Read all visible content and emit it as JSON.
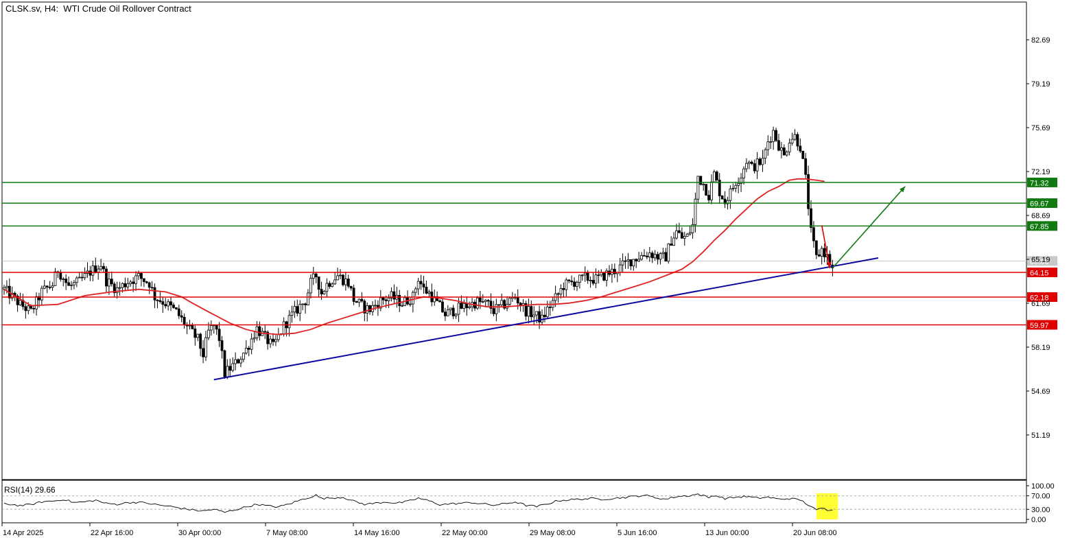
{
  "header": {
    "symbol_timeframe": "CLSK.sv, H4:",
    "instrument": "WTI Crude Oil Rollover Contract"
  },
  "rsi": {
    "label": "RSI(14)",
    "value": "29.66"
  },
  "colors": {
    "support_green": "#107a10",
    "resistance_red": "#e00000",
    "trendline_blue": "#0a0aa0",
    "ma_red": "#e02020",
    "rsi_highlight": "#ffff33"
  },
  "chart_data": {
    "type": "candlestick",
    "title": "WTI Crude Oil Rollover Contract",
    "timeframe": "H4",
    "ylim": [
      48.3,
      85.0
    ],
    "y_ticks": [
      "82.69",
      "79.19",
      "75.69",
      "72.19",
      "68.69",
      "65.19",
      "61.69",
      "58.19",
      "54.69",
      "51.19"
    ],
    "x_ticks": [
      "14 Apr 2025",
      "22 Apr 16:00",
      "30 Apr 00:00",
      "7 May 08:00",
      "14 May 16:00",
      "22 May 00:00",
      "29 May 08:00",
      "5 Jun 16:00",
      "13 Jun 00:00",
      "20 Jun 08:00"
    ],
    "current_price": "65.06",
    "green_levels": [
      {
        "value": 71.32,
        "label": "71.32"
      },
      {
        "value": 69.67,
        "label": "69.67"
      },
      {
        "value": 67.85,
        "label": "67.85"
      }
    ],
    "red_levels": [
      {
        "value": 64.15,
        "label": "64.15"
      },
      {
        "value": 62.18,
        "label": "62.18"
      },
      {
        "value": 59.97,
        "label": "59.97"
      }
    ],
    "trendline": {
      "from": {
        "bar": 78,
        "price": 55.6
      },
      "to": {
        "bar": 325,
        "price": 65.3
      }
    },
    "arrows": [
      {
        "color": "red",
        "from": {
          "bar": 304,
          "price": 67.9
        },
        "to": {
          "bar": 307,
          "price": 64.5
        }
      },
      {
        "color": "green",
        "from": {
          "bar": 308,
          "price": 64.5
        },
        "to": {
          "bar": 335,
          "price": 71.0
        }
      }
    ],
    "close_path": [
      [
        0,
        62.8
      ],
      [
        6,
        61.6
      ],
      [
        10,
        61.0
      ],
      [
        14,
        62.6
      ],
      [
        18,
        63.2
      ],
      [
        20,
        64.4
      ],
      [
        24,
        63.0
      ],
      [
        28,
        63.4
      ],
      [
        32,
        64.2
      ],
      [
        36,
        64.8
      ],
      [
        38,
        63.5
      ],
      [
        42,
        62.8
      ],
      [
        46,
        63.4
      ],
      [
        50,
        63.8
      ],
      [
        54,
        63.3
      ],
      [
        56,
        62.2
      ],
      [
        60,
        61.7
      ],
      [
        64,
        61.0
      ],
      [
        68,
        59.8
      ],
      [
        72,
        58.8
      ],
      [
        74,
        57.6
      ],
      [
        76,
        59.4
      ],
      [
        78,
        59.9
      ],
      [
        80,
        58.9
      ],
      [
        82,
        56.1
      ],
      [
        86,
        56.9
      ],
      [
        90,
        58.0
      ],
      [
        94,
        59.7
      ],
      [
        98,
        58.7
      ],
      [
        100,
        58.2
      ],
      [
        104,
        59.9
      ],
      [
        108,
        61.0
      ],
      [
        112,
        61.9
      ],
      [
        114,
        63.3
      ],
      [
        116,
        63.9
      ],
      [
        118,
        62.5
      ],
      [
        120,
        63.2
      ],
      [
        122,
        63.6
      ],
      [
        124,
        63.9
      ],
      [
        128,
        63.3
      ],
      [
        130,
        62.0
      ],
      [
        134,
        61.3
      ],
      [
        136,
        61.2
      ],
      [
        140,
        61.9
      ],
      [
        144,
        62.2
      ],
      [
        148,
        61.7
      ],
      [
        152,
        62.2
      ],
      [
        154,
        63.7
      ],
      [
        156,
        62.8
      ],
      [
        158,
        62.5
      ],
      [
        162,
        61.4
      ],
      [
        164,
        60.8
      ],
      [
        168,
        61.2
      ],
      [
        172,
        61.5
      ],
      [
        176,
        61.8
      ],
      [
        180,
        61.6
      ],
      [
        182,
        61.1
      ],
      [
        186,
        61.6
      ],
      [
        190,
        62.2
      ],
      [
        194,
        61.1
      ],
      [
        196,
        60.9
      ],
      [
        200,
        60.4
      ],
      [
        202,
        61.2
      ],
      [
        206,
        62.4
      ],
      [
        208,
        63.1
      ],
      [
        212,
        63.4
      ],
      [
        216,
        63.7
      ],
      [
        220,
        63.6
      ],
      [
        224,
        64.0
      ],
      [
        228,
        64.4
      ],
      [
        232,
        65.0
      ],
      [
        236,
        65.4
      ],
      [
        240,
        65.7
      ],
      [
        244,
        65.3
      ],
      [
        246,
        65.4
      ],
      [
        248,
        66.7
      ],
      [
        250,
        67.4
      ],
      [
        252,
        66.9
      ],
      [
        254,
        67.0
      ],
      [
        256,
        67.9
      ],
      [
        258,
        71.8
      ],
      [
        260,
        71.2
      ],
      [
        262,
        70.3
      ],
      [
        264,
        72.0
      ],
      [
        266,
        70.6
      ],
      [
        268,
        69.8
      ],
      [
        270,
        70.5
      ],
      [
        272,
        71.4
      ],
      [
        274,
        71.9
      ],
      [
        276,
        73.1
      ],
      [
        278,
        72.5
      ],
      [
        280,
        72.8
      ],
      [
        282,
        73.0
      ],
      [
        284,
        74.6
      ],
      [
        286,
        75.4
      ],
      [
        288,
        74.3
      ],
      [
        290,
        73.4
      ],
      [
        292,
        74.8
      ],
      [
        294,
        75.0
      ],
      [
        296,
        74.2
      ],
      [
        298,
        71.6
      ],
      [
        300,
        67.3
      ],
      [
        302,
        65.3
      ],
      [
        304,
        66.0
      ],
      [
        306,
        65.4
      ],
      [
        308,
        64.4
      ]
    ],
    "moving_average": [
      [
        0,
        62.8
      ],
      [
        10,
        61.5
      ],
      [
        20,
        61.6
      ],
      [
        30,
        62.3
      ],
      [
        40,
        62.6
      ],
      [
        50,
        62.8
      ],
      [
        60,
        62.6
      ],
      [
        66,
        62.2
      ],
      [
        70,
        61.7
      ],
      [
        76,
        61.0
      ],
      [
        84,
        60.1
      ],
      [
        90,
        59.6
      ],
      [
        96,
        59.3
      ],
      [
        102,
        59.2
      ],
      [
        108,
        59.3
      ],
      [
        114,
        59.6
      ],
      [
        120,
        60.1
      ],
      [
        126,
        60.5
      ],
      [
        132,
        60.9
      ],
      [
        138,
        61.3
      ],
      [
        144,
        61.6
      ],
      [
        150,
        61.9
      ],
      [
        156,
        62.2
      ],
      [
        162,
        62.1
      ],
      [
        168,
        61.9
      ],
      [
        174,
        61.6
      ],
      [
        180,
        61.4
      ],
      [
        186,
        61.4
      ],
      [
        192,
        61.5
      ],
      [
        198,
        61.6
      ],
      [
        204,
        61.6
      ],
      [
        210,
        61.7
      ],
      [
        216,
        61.9
      ],
      [
        222,
        62.2
      ],
      [
        228,
        62.6
      ],
      [
        234,
        63.0
      ],
      [
        240,
        63.4
      ],
      [
        246,
        63.9
      ],
      [
        252,
        64.4
      ],
      [
        256,
        65.0
      ],
      [
        260,
        65.8
      ],
      [
        264,
        66.7
      ],
      [
        268,
        67.5
      ],
      [
        272,
        68.4
      ],
      [
        276,
        69.2
      ],
      [
        280,
        70.0
      ],
      [
        284,
        70.6
      ],
      [
        288,
        71.0
      ],
      [
        292,
        71.5
      ],
      [
        295,
        71.6
      ],
      [
        298,
        71.6
      ],
      [
        302,
        71.5
      ],
      [
        305,
        71.4
      ]
    ],
    "rsi_panel": {
      "ylim": [
        0,
        100
      ],
      "levels": [
        70,
        30
      ],
      "y_ticks": [
        "100.00",
        "70.00",
        "30.00",
        "0.00"
      ],
      "values": [
        [
          0,
          47
        ],
        [
          6,
          41
        ],
        [
          10,
          44
        ],
        [
          14,
          52
        ],
        [
          20,
          56
        ],
        [
          22,
          60
        ],
        [
          26,
          50
        ],
        [
          30,
          52
        ],
        [
          34,
          57
        ],
        [
          38,
          47
        ],
        [
          42,
          45
        ],
        [
          46,
          50
        ],
        [
          50,
          51
        ],
        [
          54,
          47
        ],
        [
          58,
          42
        ],
        [
          62,
          38
        ],
        [
          66,
          33
        ],
        [
          70,
          28
        ],
        [
          74,
          25
        ],
        [
          78,
          30
        ],
        [
          82,
          21
        ],
        [
          86,
          29
        ],
        [
          90,
          37
        ],
        [
          94,
          45
        ],
        [
          98,
          40
        ],
        [
          102,
          37
        ],
        [
          106,
          46
        ],
        [
          110,
          57
        ],
        [
          114,
          67
        ],
        [
          116,
          72
        ],
        [
          118,
          62
        ],
        [
          122,
          64
        ],
        [
          126,
          66
        ],
        [
          130,
          54
        ],
        [
          134,
          45
        ],
        [
          138,
          48
        ],
        [
          142,
          52
        ],
        [
          146,
          48
        ],
        [
          150,
          53
        ],
        [
          154,
          63
        ],
        [
          158,
          55
        ],
        [
          162,
          44
        ],
        [
          166,
          46
        ],
        [
          170,
          48
        ],
        [
          174,
          50
        ],
        [
          178,
          46
        ],
        [
          182,
          42
        ],
        [
          186,
          46
        ],
        [
          190,
          52
        ],
        [
          194,
          42
        ],
        [
          198,
          38
        ],
        [
          202,
          46
        ],
        [
          206,
          56
        ],
        [
          210,
          58
        ],
        [
          214,
          60
        ],
        [
          218,
          62
        ],
        [
          222,
          60
        ],
        [
          226,
          62
        ],
        [
          230,
          65
        ],
        [
          234,
          68
        ],
        [
          238,
          72
        ],
        [
          242,
          65
        ],
        [
          246,
          60
        ],
        [
          250,
          68
        ],
        [
          254,
          70
        ],
        [
          258,
          75
        ],
        [
          262,
          65
        ],
        [
          264,
          72
        ],
        [
          268,
          62
        ],
        [
          272,
          66
        ],
        [
          276,
          68
        ],
        [
          280,
          63
        ],
        [
          284,
          66
        ],
        [
          288,
          60
        ],
        [
          292,
          62
        ],
        [
          296,
          58
        ],
        [
          300,
          38
        ],
        [
          302,
          27
        ],
        [
          304,
          34
        ],
        [
          306,
          28
        ],
        [
          308,
          30
        ]
      ]
    }
  }
}
